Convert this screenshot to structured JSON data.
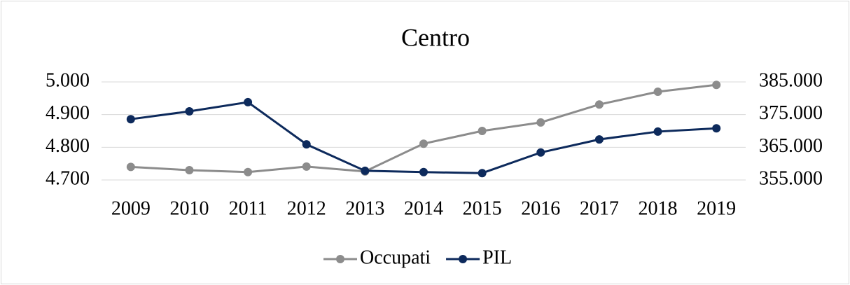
{
  "chart_data": {
    "type": "line",
    "title": "Centro",
    "categories": [
      "2009",
      "2010",
      "2011",
      "2012",
      "2013",
      "2014",
      "2015",
      "2016",
      "2017",
      "2018",
      "2019"
    ],
    "series": [
      {
        "name": "Occupati",
        "color": "#8c8c8c",
        "values": [
          4740,
          4730,
          4724,
          4741,
          4726,
          4811,
          4850,
          4876,
          4931,
          4970,
          4991
        ]
      },
      {
        "name": "PIL",
        "color": "#0d2a5c",
        "axis": "y2",
        "values": [
          373600,
          376000,
          378800,
          365900,
          357800,
          357400,
          357100,
          363400,
          367400,
          369800,
          370800
        ]
      }
    ],
    "ylim": [
      4700,
      5000
    ],
    "yticks": [
      {
        "value": 4700,
        "label": "4.700"
      },
      {
        "value": 4800,
        "label": "4.800"
      },
      {
        "value": 4900,
        "label": "4.900"
      },
      {
        "value": 5000,
        "label": "5.000"
      }
    ],
    "y2lim": [
      355000,
      385000
    ],
    "y2ticks": [
      {
        "value": 355000,
        "label": "355.000"
      },
      {
        "value": 365000,
        "label": "365.000"
      },
      {
        "value": 375000,
        "label": "375.000"
      },
      {
        "value": 385000,
        "label": "385.000"
      }
    ],
    "grid": true,
    "legend": "bottom"
  }
}
